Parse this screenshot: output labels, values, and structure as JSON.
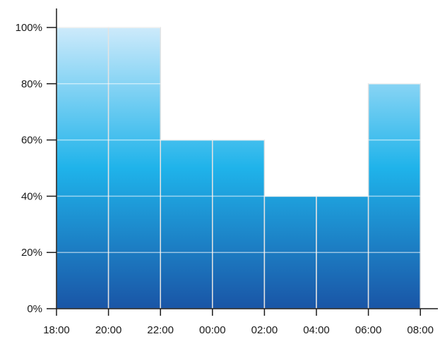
{
  "chart_data": {
    "type": "bar",
    "x_ticks": [
      "18:00",
      "20:00",
      "22:00",
      "00:00",
      "02:00",
      "04:00",
      "06:00",
      "08:00"
    ],
    "bins": [
      {
        "start": "18:00",
        "end": "20:00",
        "value": 100
      },
      {
        "start": "20:00",
        "end": "22:00",
        "value": 100
      },
      {
        "start": "22:00",
        "end": "00:00",
        "value": 60
      },
      {
        "start": "00:00",
        "end": "02:00",
        "value": 60
      },
      {
        "start": "02:00",
        "end": "04:00",
        "value": 40
      },
      {
        "start": "04:00",
        "end": "06:00",
        "value": 40
      },
      {
        "start": "06:00",
        "end": "08:00",
        "value": 80
      }
    ],
    "y_ticks": [
      "0%",
      "20%",
      "40%",
      "60%",
      "80%",
      "100%"
    ],
    "y_tick_values": [
      0,
      20,
      40,
      60,
      80,
      100
    ],
    "ylim": [
      0,
      100
    ],
    "grid": true,
    "legend": "none",
    "colors": {
      "gradient_top": "#cdeafb",
      "gradient_mid": "#1fb3ea",
      "gradient_bottom": "#1a55a6",
      "bar_outline": "#e3e3e3",
      "axis": "#1a1a1a"
    }
  }
}
